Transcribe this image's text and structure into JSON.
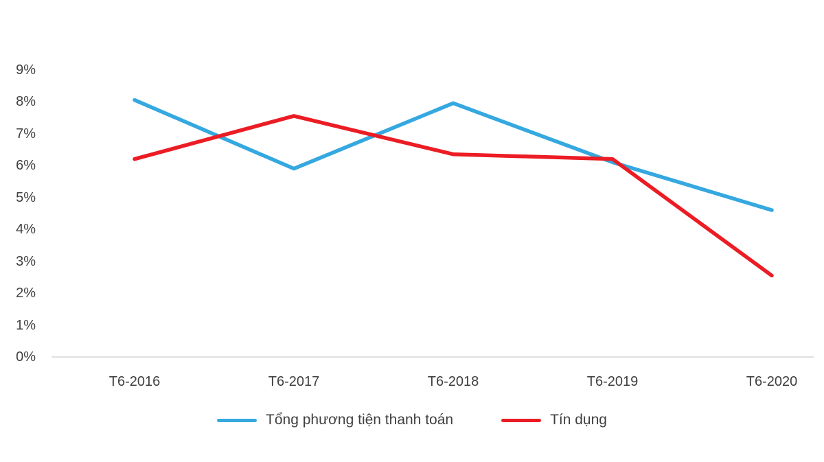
{
  "chart_data": {
    "type": "line",
    "categories": [
      "T6-2016",
      "T6-2017",
      "T6-2018",
      "T6-2019",
      "T6-2020"
    ],
    "series": [
      {
        "name": "Tổng phương tiện thanh toán",
        "color": "#35A8E0",
        "values": [
          8.05,
          5.9,
          7.95,
          6.1,
          4.6
        ]
      },
      {
        "name": "Tín dụng",
        "color": "#EC1C24",
        "values": [
          6.2,
          7.55,
          6.35,
          6.2,
          2.55
        ]
      }
    ],
    "y_ticks": [
      "9%",
      "8%",
      "7%",
      "6%",
      "5%",
      "4%",
      "3%",
      "2%",
      "1%",
      "0%"
    ],
    "y_tick_values": [
      9,
      8,
      7,
      6,
      5,
      4,
      3,
      2,
      1,
      0
    ],
    "ylim": [
      0,
      9
    ],
    "grid": false,
    "legend_position": "bottom",
    "axis_line_color": "#d6d6d6",
    "title": "",
    "xlabel": "",
    "ylabel": ""
  }
}
